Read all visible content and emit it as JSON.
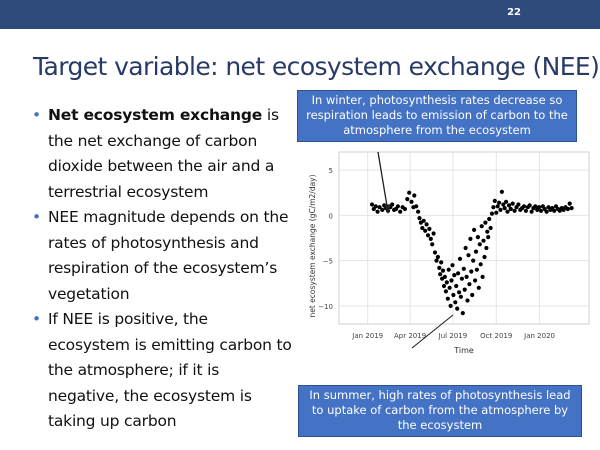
{
  "slide": {
    "page_number": "22",
    "title": "Target variable: net ecosystem exchange (NEE)",
    "bullets": [
      {
        "bold": "Net ecosystem exchange",
        "text": " is the net exchange of carbon dioxide between the air and a terrestrial ecosystem"
      },
      {
        "bold": "",
        "text": "NEE magnitude depends on the rates of photosynthesis and respiration of the ecosystem’s vegetation"
      },
      {
        "bold": "",
        "text": "If NEE is positive, the ecosystem is emitting carbon to the atmosphere; if it is negative, the ecosystem is taking up carbon"
      }
    ],
    "callout_winter": "In winter, photosynthesis rates decrease so respiration leads to emission of carbon to the atmosphere from the ecosystem",
    "callout_summer": "In summer, high rates of photosynthesis lead to uptake of carbon from the atmosphere by the ecosystem"
  },
  "colors": {
    "top_bar": "#2e4b7c",
    "title": "#2a3a66",
    "bullet": "#4472c4",
    "callout_fill": "#4472c4",
    "points": "#000000"
  },
  "chart_data": {
    "type": "scatter",
    "xlabel": "Time",
    "ylabel": "net ecosystem exchange (gC/m2/day)",
    "x_ticks": [
      "Jan 2019",
      "Apr 2019",
      "Jul 2019",
      "Oct 2019",
      "Jan 2020"
    ],
    "y_ticks": [
      "5",
      "0",
      "−5",
      "−10"
    ],
    "y_tick_values": [
      5,
      0,
      -5,
      -10
    ],
    "xlim": [
      "2018-11-01",
      "2020-04-15"
    ],
    "ylim": [
      -12,
      7
    ],
    "grid": true,
    "points": [
      [
        "2019-01-10",
        1.2
      ],
      [
        "2019-01-14",
        0.7
      ],
      [
        "2019-01-18",
        1.0
      ],
      [
        "2019-01-22",
        0.4
      ],
      [
        "2019-01-26",
        0.9
      ],
      [
        "2019-02-01",
        0.6
      ],
      [
        "2019-02-05",
        1.1
      ],
      [
        "2019-02-09",
        0.8
      ],
      [
        "2019-02-13",
        0.5
      ],
      [
        "2019-02-18",
        0.9
      ],
      [
        "2019-02-22",
        1.2
      ],
      [
        "2019-02-26",
        0.6
      ],
      [
        "2019-03-02",
        0.7
      ],
      [
        "2019-03-06",
        1.0
      ],
      [
        "2019-03-11",
        0.4
      ],
      [
        "2019-03-16",
        0.9
      ],
      [
        "2019-03-21",
        0.7
      ],
      [
        "2019-03-26",
        1.8
      ],
      [
        "2019-03-30",
        2.5
      ],
      [
        "2019-04-04",
        1.5
      ],
      [
        "2019-04-08",
        0.9
      ],
      [
        "2019-04-10",
        2.2
      ],
      [
        "2019-04-14",
        1.0
      ],
      [
        "2019-04-18",
        0.4
      ],
      [
        "2019-04-21",
        -0.3
      ],
      [
        "2019-04-24",
        -0.8
      ],
      [
        "2019-04-27",
        -1.4
      ],
      [
        "2019-04-30",
        -0.6
      ],
      [
        "2019-05-03",
        -1.7
      ],
      [
        "2019-05-06",
        -1.0
      ],
      [
        "2019-05-09",
        -2.2
      ],
      [
        "2019-05-12",
        -1.5
      ],
      [
        "2019-05-15",
        -2.6
      ],
      [
        "2019-05-18",
        -3.2
      ],
      [
        "2019-05-21",
        -2.0
      ],
      [
        "2019-05-24",
        -4.1
      ],
      [
        "2019-05-27",
        -5.0
      ],
      [
        "2019-05-30",
        -4.6
      ],
      [
        "2019-06-02",
        -5.8
      ],
      [
        "2019-06-04",
        -6.5
      ],
      [
        "2019-06-06",
        -5.2
      ],
      [
        "2019-06-08",
        -7.0
      ],
      [
        "2019-06-10",
        -6.1
      ],
      [
        "2019-06-12",
        -7.8
      ],
      [
        "2019-06-14",
        -6.8
      ],
      [
        "2019-06-16",
        -8.4
      ],
      [
        "2019-06-18",
        -7.4
      ],
      [
        "2019-06-20",
        -9.2
      ],
      [
        "2019-06-22",
        -6.0
      ],
      [
        "2019-06-24",
        -8.0
      ],
      [
        "2019-06-26",
        -10.0
      ],
      [
        "2019-06-28",
        -7.2
      ],
      [
        "2019-06-30",
        -5.5
      ],
      [
        "2019-07-02",
        -8.8
      ],
      [
        "2019-07-04",
        -6.6
      ],
      [
        "2019-07-06",
        -9.6
      ],
      [
        "2019-07-08",
        -7.8
      ],
      [
        "2019-07-10",
        -10.3
      ],
      [
        "2019-07-12",
        -6.4
      ],
      [
        "2019-07-14",
        -8.5
      ],
      [
        "2019-07-16",
        -4.8
      ],
      [
        "2019-07-18",
        -9.0
      ],
      [
        "2019-07-20",
        -7.0
      ],
      [
        "2019-07-22",
        -10.8
      ],
      [
        "2019-07-24",
        -5.9
      ],
      [
        "2019-07-26",
        -8.2
      ],
      [
        "2019-07-28",
        -3.6
      ],
      [
        "2019-07-30",
        -6.8
      ],
      [
        "2019-08-01",
        -9.4
      ],
      [
        "2019-08-03",
        -4.4
      ],
      [
        "2019-08-05",
        -7.6
      ],
      [
        "2019-08-07",
        -2.6
      ],
      [
        "2019-08-09",
        -6.2
      ],
      [
        "2019-08-11",
        -8.8
      ],
      [
        "2019-08-13",
        -5.0
      ],
      [
        "2019-08-15",
        -1.6
      ],
      [
        "2019-08-17",
        -7.2
      ],
      [
        "2019-08-19",
        -4.0
      ],
      [
        "2019-08-21",
        -6.0
      ],
      [
        "2019-08-23",
        -2.4
      ],
      [
        "2019-08-25",
        -8.0
      ],
      [
        "2019-08-27",
        -3.2
      ],
      [
        "2019-08-29",
        -5.4
      ],
      [
        "2019-08-31",
        -1.2
      ],
      [
        "2019-09-02",
        -6.8
      ],
      [
        "2019-09-04",
        -2.8
      ],
      [
        "2019-09-06",
        -4.6
      ],
      [
        "2019-09-08",
        -0.8
      ],
      [
        "2019-09-10",
        -3.6
      ],
      [
        "2019-09-12",
        -1.8
      ],
      [
        "2019-09-14",
        -2.4
      ],
      [
        "2019-09-16",
        -0.4
      ],
      [
        "2019-09-19",
        -1.4
      ],
      [
        "2019-09-22",
        0.2
      ],
      [
        "2019-09-25",
        0.9
      ],
      [
        "2019-09-28",
        1.6
      ],
      [
        "2019-10-01",
        0.3
      ],
      [
        "2019-10-04",
        1.0
      ],
      [
        "2019-10-07",
        1.4
      ],
      [
        "2019-10-10",
        0.6
      ],
      [
        "2019-10-13",
        2.6
      ],
      [
        "2019-10-16",
        1.2
      ],
      [
        "2019-10-19",
        0.8
      ],
      [
        "2019-10-22",
        1.5
      ],
      [
        "2019-10-25",
        0.4
      ],
      [
        "2019-10-28",
        1.1
      ],
      [
        "2019-11-01",
        0.7
      ],
      [
        "2019-11-05",
        1.3
      ],
      [
        "2019-11-09",
        0.5
      ],
      [
        "2019-11-13",
        0.9
      ],
      [
        "2019-11-17",
        1.2
      ],
      [
        "2019-11-21",
        0.6
      ],
      [
        "2019-11-25",
        0.8
      ],
      [
        "2019-11-29",
        1.0
      ],
      [
        "2019-12-03",
        0.5
      ],
      [
        "2019-12-07",
        0.9
      ],
      [
        "2019-12-11",
        1.1
      ],
      [
        "2019-12-15",
        0.4
      ],
      [
        "2019-12-19",
        0.8
      ],
      [
        "2019-12-23",
        1.0
      ],
      [
        "2019-12-27",
        0.6
      ],
      [
        "2019-12-31",
        0.9
      ],
      [
        "2020-01-04",
        0.5
      ],
      [
        "2020-01-08",
        1.0
      ],
      [
        "2020-01-12",
        0.7
      ],
      [
        "2020-01-16",
        0.4
      ],
      [
        "2020-01-20",
        0.9
      ],
      [
        "2020-01-24",
        0.6
      ],
      [
        "2020-01-28",
        0.8
      ],
      [
        "2020-02-01",
        0.5
      ],
      [
        "2020-02-05",
        1.0
      ],
      [
        "2020-02-09",
        0.7
      ],
      [
        "2020-02-13",
        0.5
      ],
      [
        "2020-02-17",
        0.8
      ],
      [
        "2020-02-21",
        0.6
      ],
      [
        "2020-02-25",
        0.9
      ],
      [
        "2020-03-01",
        0.7
      ],
      [
        "2020-03-05",
        1.3
      ],
      [
        "2020-03-09",
        0.8
      ]
    ]
  }
}
